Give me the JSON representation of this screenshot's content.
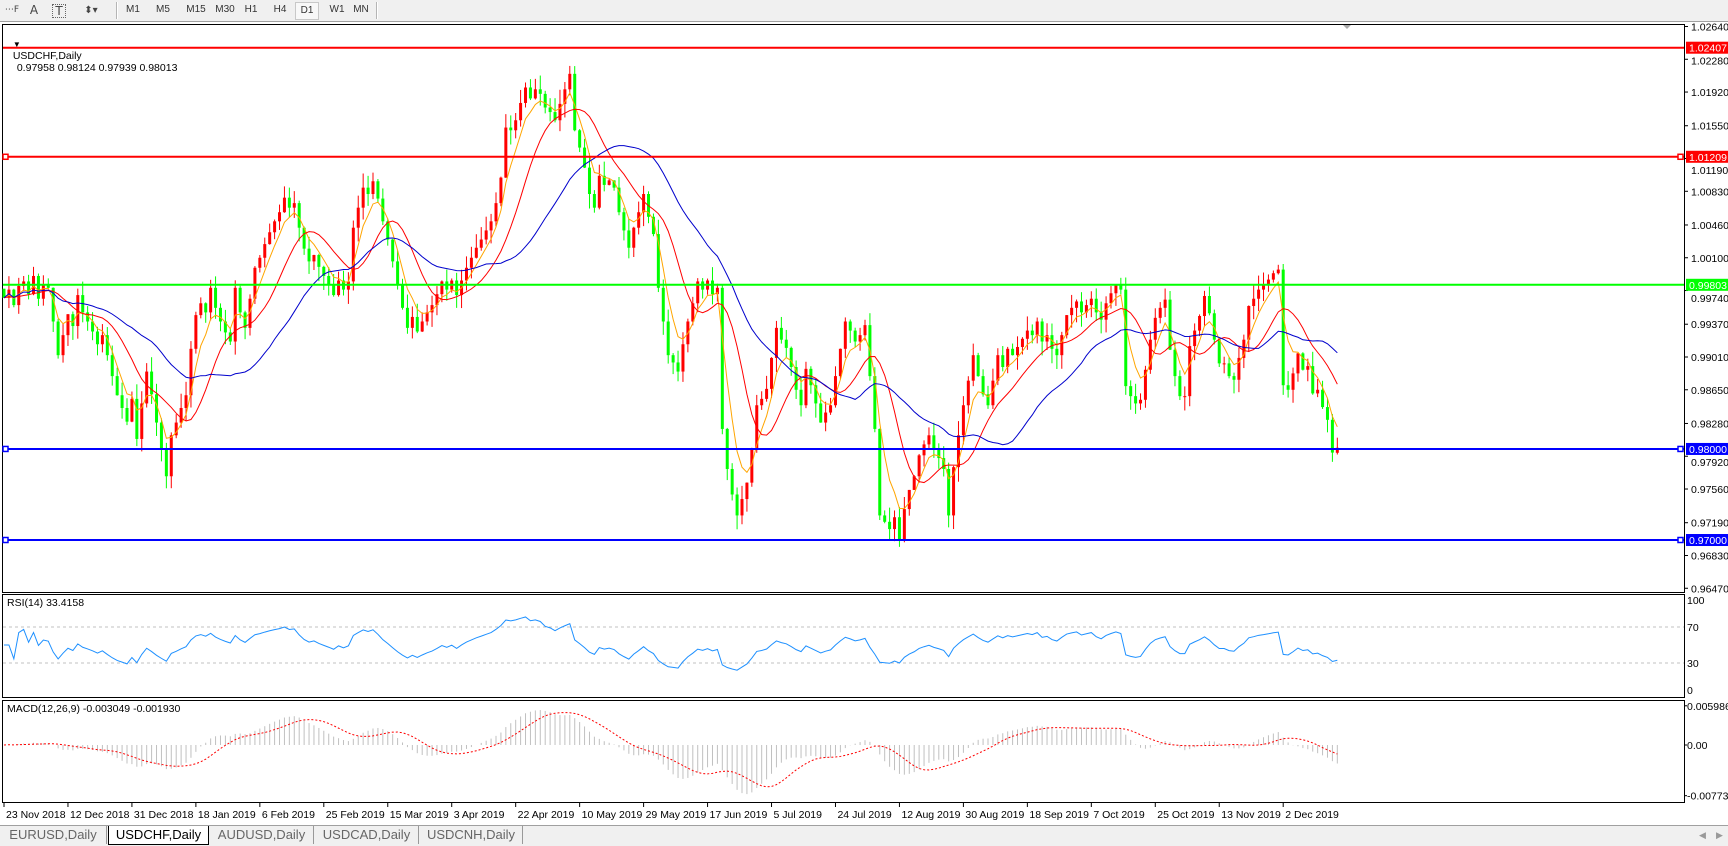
{
  "toolbar": {
    "tools": [
      {
        "name": "fibonacci-fan-icon",
        "glyph": "⋯F"
      },
      {
        "name": "text-icon",
        "glyph": "A"
      },
      {
        "name": "text-label-icon",
        "glyph": "T"
      },
      {
        "name": "arrows-icon",
        "glyph": "⬍▾"
      }
    ],
    "timeframes": [
      "M1",
      "M5",
      "M15",
      "M30",
      "H1",
      "H4",
      "D1",
      "W1",
      "MN"
    ],
    "active_timeframe": "D1"
  },
  "chart": {
    "title": "USDCHF,Daily",
    "ohlc_text": "0.97958 0.98124 0.97939 0.98013"
  },
  "chart_data": {
    "type": "candlestick",
    "symbol": "USDCHF",
    "timeframe": "Daily",
    "bull_color": "#ff0000",
    "bear_color": "#00ff00",
    "moving_average_colors": [
      "#ffa500",
      "#ff0000",
      "#0000cc"
    ],
    "last_bar": {
      "open": 0.97958,
      "high": 0.98124,
      "low": 0.97939,
      "close": 0.98013
    },
    "x_tick_labels": [
      "23 Nov 2018",
      "12 Dec 2018",
      "31 Dec 2018",
      "18 Jan 2019",
      "6 Feb 2019",
      "25 Feb 2019",
      "15 Mar 2019",
      "3 Apr 2019",
      "22 Apr 2019",
      "10 May 2019",
      "29 May 2019",
      "17 Jun 2019",
      "5 Jul 2019",
      "24 Jul 2019",
      "12 Aug 2019",
      "30 Aug 2019",
      "18 Sep 2019",
      "7 Oct 2019",
      "25 Oct 2019",
      "13 Nov 2019",
      "2 Dec 2019"
    ],
    "price_axis_ticks": [
      "1.02640",
      "1.02280",
      "1.01920",
      "1.01550",
      "1.01190",
      "1.00830",
      "1.00460",
      "1.00100",
      "0.99740",
      "0.99370",
      "0.99010",
      "0.98650",
      "0.98280",
      "0.97920",
      "0.97560",
      "0.97190",
      "0.96830",
      "0.96470"
    ],
    "ylim": [
      0.9647,
      1.0264
    ],
    "horizontal_levels": [
      {
        "price": "1.02407",
        "color": "#ff0000",
        "handles": false
      },
      {
        "price": "1.01209",
        "color": "#ff0000",
        "handles": true
      },
      {
        "price": "0.99803",
        "color": "#00ff00",
        "handles": false
      },
      {
        "price": "0.98000",
        "color": "#0000ff",
        "handles": true
      },
      {
        "price": "0.97000",
        "color": "#0000ff",
        "handles": true
      }
    ],
    "daily_close": [
      0.9966,
      0.9975,
      0.9958,
      0.9979,
      0.9984,
      0.997,
      0.999,
      0.9965,
      0.998,
      0.9977,
      0.994,
      0.9903,
      0.9925,
      0.9948,
      0.9935,
      0.9969,
      0.995,
      0.994,
      0.9929,
      0.9915,
      0.9925,
      0.9903,
      0.988,
      0.9859,
      0.9845,
      0.983,
      0.9855,
      0.9811,
      0.985,
      0.9885,
      0.986,
      0.9829,
      0.98,
      0.977,
      0.9815,
      0.9829,
      0.9845,
      0.9859,
      0.991,
      0.9947,
      0.996,
      0.995,
      0.9977,
      0.9955,
      0.994,
      0.9928,
      0.9918,
      0.9977,
      0.995,
      0.9933,
      0.9965,
      0.9999,
      1.001,
      1.0025,
      1.0038,
      1.005,
      1.006,
      1.0076,
      1.0065,
      1.007,
      1.0043,
      1.002,
      1.0006,
      1.0013,
      1.0,
      0.999,
      0.998,
      0.9969,
      0.9985,
      0.9975,
      0.9984,
      1.0043,
      1.0065,
      1.0087,
      1.008,
      1.0094,
      1.0075,
      1.005,
      1.003,
      1.0006,
      0.998,
      0.9955,
      0.9933,
      0.9945,
      0.9929,
      0.994,
      0.995,
      0.9958,
      0.997,
      0.9984,
      0.9975,
      0.9985,
      0.9969,
      0.9985,
      0.9999,
      1.001,
      1.0021,
      1.003,
      1.004,
      1.005,
      1.007,
      1.0098,
      1.0153,
      1.015,
      1.0161,
      1.018,
      1.0197,
      1.0185,
      1.0195,
      1.019,
      1.0175,
      1.017,
      1.0161,
      1.0179,
      1.0195,
      1.0212,
      1.015,
      1.0131,
      1.0109,
      1.008,
      1.0065,
      1.01,
      1.009,
      1.0095,
      1.0087,
      1.006,
      1.004,
      1.0021,
      1.0043,
      1.006,
      1.008,
      1.0055,
      1.0036,
      0.9977,
      0.994,
      0.9903,
      0.9895,
      0.9885,
      0.9915,
      0.994,
      0.996,
      0.9984,
      0.9975,
      0.9985,
      0.997,
      0.9977,
      0.9822,
      0.9778,
      0.975,
      0.9727,
      0.9745,
      0.9763,
      0.98,
      0.9848,
      0.9855,
      0.9866,
      0.99,
      0.9933,
      0.992,
      0.9911,
      0.989,
      0.9865,
      0.9848,
      0.9888,
      0.987,
      0.985,
      0.9829,
      0.984,
      0.9848,
      0.988,
      0.991,
      0.994,
      0.993,
      0.9918,
      0.9925,
      0.9936,
      0.988,
      0.9822,
      0.9727,
      0.972,
      0.9712,
      0.9725,
      0.97,
      0.9734,
      0.9755,
      0.977,
      0.9793,
      0.9805,
      0.9815,
      0.98,
      0.979,
      0.9778,
      0.9727,
      0.978,
      0.9815,
      0.9848,
      0.9875,
      0.9903,
      0.988,
      0.986,
      0.9848,
      0.9875,
      0.9903,
      0.989,
      0.991,
      0.9903,
      0.9912,
      0.9921,
      0.993,
      0.9925,
      0.994,
      0.9918,
      0.9925,
      0.991,
      0.9903,
      0.9925,
      0.9947,
      0.9955,
      0.9962,
      0.995,
      0.9958,
      0.9965,
      0.995,
      0.9942,
      0.996,
      0.9971,
      0.998,
      0.9975,
      0.9869,
      0.9858,
      0.985,
      0.9854,
      0.9887,
      0.992,
      0.9944,
      0.9955,
      0.9964,
      0.9909,
      0.988,
      0.9858,
      0.9858,
      0.9913,
      0.993,
      0.9946,
      0.9968,
      0.9949,
      0.992,
      0.9894,
      0.9894,
      0.988,
      0.9876,
      0.99,
      0.992,
      0.9957,
      0.9965,
      0.9975,
      0.998,
      0.9986,
      0.9993,
      0.9997,
      0.987,
      0.9865,
      0.9883,
      0.9905,
      0.9887,
      0.9891,
      0.9861,
      0.9865,
      0.9846,
      0.9832,
      0.9796,
      0.98013
    ],
    "rsi": {
      "label": "RSI(14) 33.4158",
      "period": 14,
      "value": 33.4158,
      "levels": [
        70,
        30
      ],
      "axis_ticks": [
        "100",
        "70",
        "30",
        "0"
      ],
      "color": "#1e90ff"
    },
    "macd": {
      "label": "MACD(12,26,9) -0.003049 -0.001930",
      "main": -0.003049,
      "signal": -0.00193,
      "axis_ticks": [
        "0.005986",
        "0.00",
        "-0.007737"
      ],
      "histogram_color": "#c0c0c0",
      "signal_color": "#ff0000"
    }
  },
  "tabs": [
    {
      "label": "EURUSD,Daily",
      "active": false
    },
    {
      "label": "USDCHF,Daily",
      "active": true
    },
    {
      "label": "AUDUSD,Daily",
      "active": false
    },
    {
      "label": "USDCAD,Daily",
      "active": false
    },
    {
      "label": "USDCNH,Daily",
      "active": false
    }
  ]
}
